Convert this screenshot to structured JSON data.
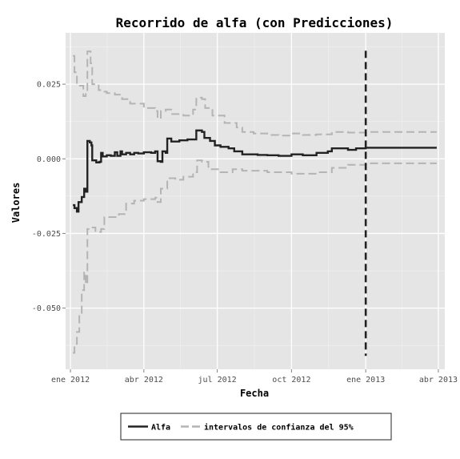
{
  "chart_data": {
    "type": "line",
    "title": "Recorrido de alfa (con Predicciones)",
    "xlabel": "Fecha",
    "ylabel": "Valores",
    "xlim": [
      "2011-12-26",
      "2013-04-09"
    ],
    "ylim": [
      -0.0705,
      0.0422
    ],
    "x_ticks": [
      {
        "date": "2012-01-01",
        "label": "ene 2012"
      },
      {
        "date": "2012-04-01",
        "label": "abr 2012"
      },
      {
        "date": "2012-07-01",
        "label": "jul 2012"
      },
      {
        "date": "2012-10-01",
        "label": "oct 2012"
      },
      {
        "date": "2013-01-01",
        "label": "ene 2013"
      },
      {
        "date": "2013-04-01",
        "label": "abr 2013"
      }
    ],
    "y_ticks": [
      {
        "value": 0.025,
        "label": "0.025"
      },
      {
        "value": 0.0,
        "label": "0.000"
      },
      {
        "value": -0.025,
        "label": "-0.025"
      },
      {
        "value": -0.05,
        "label": "-0.050"
      }
    ],
    "grid": true,
    "legend_position": "bottom",
    "vline": {
      "date": "2013-01-01",
      "y_range": [
        -0.066,
        0.0362
      ],
      "color": "#222222",
      "style": "dashed"
    },
    "series": [
      {
        "name": "Alfa",
        "color": "#222222",
        "style": "solid",
        "points": [
          [
            "2012-01-04",
            -0.0155
          ],
          [
            "2012-01-06",
            -0.0165
          ],
          [
            "2012-01-09",
            -0.0177
          ],
          [
            "2012-01-11",
            -0.0145
          ],
          [
            "2012-01-15",
            -0.0128
          ],
          [
            "2012-01-18",
            -0.01
          ],
          [
            "2012-01-20",
            -0.011
          ],
          [
            "2012-01-22",
            0.006
          ],
          [
            "2012-01-25",
            0.0055
          ],
          [
            "2012-01-27",
            0.0045
          ],
          [
            "2012-01-28",
            -0.0005
          ],
          [
            "2012-02-02",
            -0.0012
          ],
          [
            "2012-02-06",
            -0.001
          ],
          [
            "2012-02-08",
            0.002
          ],
          [
            "2012-02-10",
            0.0008
          ],
          [
            "2012-02-15",
            0.0012
          ],
          [
            "2012-02-20",
            0.001
          ],
          [
            "2012-02-25",
            0.0022
          ],
          [
            "2012-02-28",
            0.001
          ],
          [
            "2012-03-03",
            0.0025
          ],
          [
            "2012-03-05",
            0.0015
          ],
          [
            "2012-03-10",
            0.002
          ],
          [
            "2012-03-15",
            0.0015
          ],
          [
            "2012-03-20",
            0.002
          ],
          [
            "2012-03-25",
            0.0018
          ],
          [
            "2012-04-01",
            0.0022
          ],
          [
            "2012-04-10",
            0.002
          ],
          [
            "2012-04-15",
            0.0025
          ],
          [
            "2012-04-18",
            -0.0008
          ],
          [
            "2012-04-22",
            -0.001
          ],
          [
            "2012-04-24",
            0.0025
          ],
          [
            "2012-04-28",
            0.002
          ],
          [
            "2012-04-30",
            0.0068
          ],
          [
            "2012-05-05",
            0.0058
          ],
          [
            "2012-05-15",
            0.0062
          ],
          [
            "2012-05-25",
            0.0065
          ],
          [
            "2012-06-01",
            0.0065
          ],
          [
            "2012-06-05",
            0.0095
          ],
          [
            "2012-06-12",
            0.009
          ],
          [
            "2012-06-15",
            0.007
          ],
          [
            "2012-06-22",
            0.006
          ],
          [
            "2012-06-28",
            0.0045
          ],
          [
            "2012-07-05",
            0.004
          ],
          [
            "2012-07-15",
            0.0035
          ],
          [
            "2012-07-22",
            0.0025
          ],
          [
            "2012-08-01",
            0.0015
          ],
          [
            "2012-08-20",
            0.0013
          ],
          [
            "2012-09-01",
            0.0012
          ],
          [
            "2012-09-15",
            0.001
          ],
          [
            "2012-10-01",
            0.0015
          ],
          [
            "2012-10-15",
            0.0012
          ],
          [
            "2012-11-01",
            0.002
          ],
          [
            "2012-11-15",
            0.0025
          ],
          [
            "2012-11-20",
            0.0035
          ],
          [
            "2012-12-01",
            0.0035
          ],
          [
            "2012-12-10",
            0.003
          ],
          [
            "2012-12-20",
            0.0035
          ],
          [
            "2013-01-01",
            0.0037
          ],
          [
            "2013-03-30",
            0.0037
          ]
        ]
      },
      {
        "name": "intervalos de confianza del 95%",
        "color": "#b4b4b4",
        "style": "dashed",
        "points": [
          [
            "2012-01-04",
            0.0345
          ],
          [
            "2012-01-06",
            0.029
          ],
          [
            "2012-01-09",
            0.0245
          ],
          [
            "2012-01-13",
            0.0245
          ],
          [
            "2012-01-17",
            0.021
          ],
          [
            "2012-01-20",
            0.022
          ],
          [
            "2012-01-22",
            0.036
          ],
          [
            "2012-01-26",
            0.032
          ],
          [
            "2012-01-28",
            0.025
          ],
          [
            "2012-02-05",
            0.023
          ],
          [
            "2012-02-10",
            0.0225
          ],
          [
            "2012-02-15",
            0.022
          ],
          [
            "2012-02-25",
            0.0215
          ],
          [
            "2012-03-05",
            0.02
          ],
          [
            "2012-03-15",
            0.0185
          ],
          [
            "2012-04-01",
            0.017
          ],
          [
            "2012-04-15",
            0.016
          ],
          [
            "2012-04-18",
            0.0135
          ],
          [
            "2012-04-22",
            0.016
          ],
          [
            "2012-04-28",
            0.0165
          ],
          [
            "2012-05-05",
            0.015
          ],
          [
            "2012-05-20",
            0.0145
          ],
          [
            "2012-06-01",
            0.0165
          ],
          [
            "2012-06-05",
            0.0205
          ],
          [
            "2012-06-12",
            0.02
          ],
          [
            "2012-06-16",
            0.017
          ],
          [
            "2012-06-25",
            0.0145
          ],
          [
            "2012-07-10",
            0.012
          ],
          [
            "2012-07-25",
            0.0105
          ],
          [
            "2012-08-01",
            0.009
          ],
          [
            "2012-08-15",
            0.0085
          ],
          [
            "2012-09-01",
            0.008
          ],
          [
            "2012-09-15",
            0.0078
          ],
          [
            "2012-10-01",
            0.0085
          ],
          [
            "2012-10-15",
            0.008
          ],
          [
            "2012-11-01",
            0.0082
          ],
          [
            "2012-11-20",
            0.009
          ],
          [
            "2012-12-10",
            0.0088
          ],
          [
            "2013-01-01",
            0.009
          ],
          [
            "2013-03-30",
            0.009
          ]
        ]
      },
      {
        "name": "intervalos de confianza del 95%",
        "color": "#b4b4b4",
        "style": "dashed",
        "points": [
          [
            "2012-01-04",
            -0.065
          ],
          [
            "2012-01-06",
            -0.062
          ],
          [
            "2012-01-09",
            -0.058
          ],
          [
            "2012-01-12",
            -0.052
          ],
          [
            "2012-01-15",
            -0.044
          ],
          [
            "2012-01-18",
            -0.038
          ],
          [
            "2012-01-20",
            -0.042
          ],
          [
            "2012-01-22",
            -0.0235
          ],
          [
            "2012-01-25",
            -0.023
          ],
          [
            "2012-02-01",
            -0.0245
          ],
          [
            "2012-02-08",
            -0.0235
          ],
          [
            "2012-02-12",
            -0.0195
          ],
          [
            "2012-02-20",
            -0.0195
          ],
          [
            "2012-03-01",
            -0.0185
          ],
          [
            "2012-03-10",
            -0.015
          ],
          [
            "2012-03-20",
            -0.014
          ],
          [
            "2012-04-01",
            -0.0135
          ],
          [
            "2012-04-15",
            -0.013
          ],
          [
            "2012-04-18",
            -0.0145
          ],
          [
            "2012-04-22",
            -0.01
          ],
          [
            "2012-04-30",
            -0.0065
          ],
          [
            "2012-05-10",
            -0.007
          ],
          [
            "2012-05-20",
            -0.006
          ],
          [
            "2012-06-01",
            -0.0045
          ],
          [
            "2012-06-06",
            -0.0005
          ],
          [
            "2012-06-12",
            -0.001
          ],
          [
            "2012-06-20",
            -0.0035
          ],
          [
            "2012-07-05",
            -0.0045
          ],
          [
            "2012-07-20",
            -0.0035
          ],
          [
            "2012-08-01",
            -0.004
          ],
          [
            "2012-09-01",
            -0.0045
          ],
          [
            "2012-10-01",
            -0.005
          ],
          [
            "2012-11-01",
            -0.0045
          ],
          [
            "2012-11-20",
            -0.003
          ],
          [
            "2012-12-10",
            -0.002
          ],
          [
            "2013-01-01",
            -0.0015
          ],
          [
            "2013-03-30",
            -0.0015
          ]
        ]
      }
    ],
    "legend": [
      {
        "label": "Alfa",
        "color": "#222222",
        "style": "solid"
      },
      {
        "label": "intervalos de confianza del 95%",
        "color": "#b4b4b4",
        "style": "dashed"
      }
    ]
  }
}
